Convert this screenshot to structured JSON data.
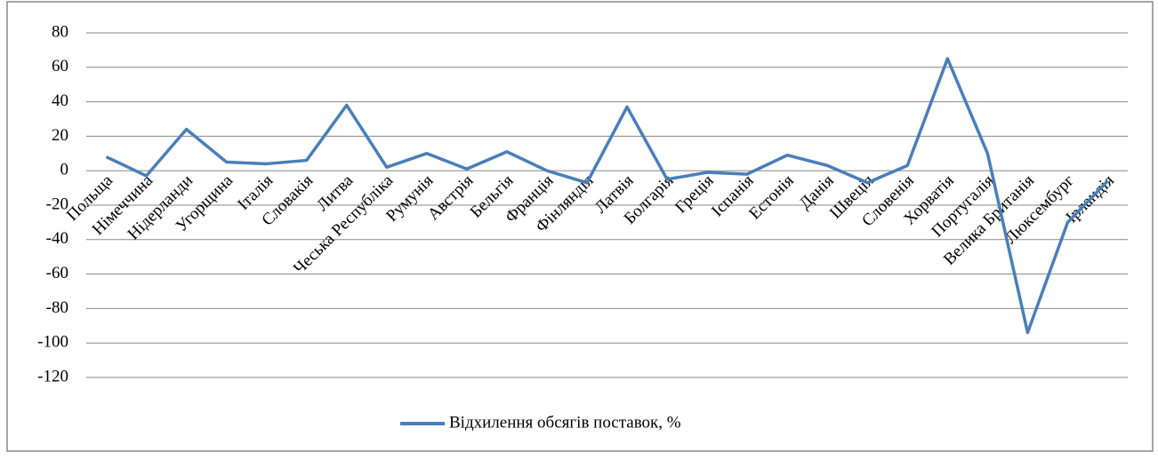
{
  "chart_data": {
    "type": "line",
    "categories": [
      "Польща",
      "Німеччина",
      "Нідерланди",
      "Угорщина",
      "Італія",
      "Словакія",
      "Литва",
      "Чеська Республіка",
      "Румунія",
      "Австрія",
      "Бельгія",
      "Франція",
      "Фінляндія",
      "Латвія",
      "Болгарія",
      "Греція",
      "Іспанія",
      "Естонія",
      "Данія",
      "Швеція",
      "Словенія",
      "Хорватія",
      "Португалія",
      "Велика Британія",
      "Люксембург",
      "Ірландія"
    ],
    "series": [
      {
        "name": "Відхилення обсягів поставок, %",
        "color": "#4a7ebb",
        "values": [
          8,
          -3,
          24,
          5,
          4,
          6,
          38,
          2,
          10,
          1,
          11,
          0,
          -7,
          37,
          -5,
          -1,
          -2,
          9,
          3,
          -7,
          3,
          65,
          10,
          -94,
          -30,
          -6
        ]
      }
    ],
    "ylim": [
      -120,
      80
    ],
    "yticks": [
      -120,
      -100,
      -80,
      -60,
      -40,
      -20,
      0,
      20,
      40,
      60,
      80
    ],
    "grid": true,
    "legend": "bottom"
  }
}
